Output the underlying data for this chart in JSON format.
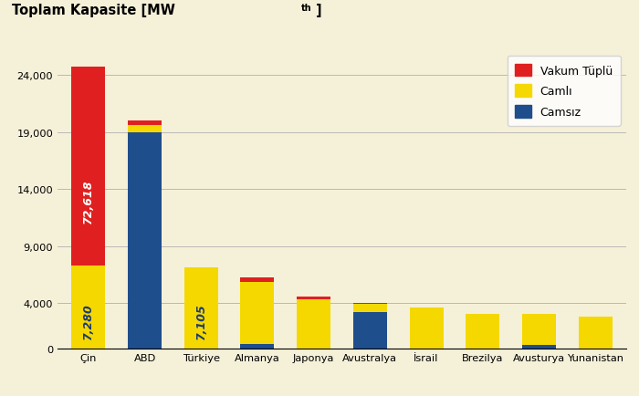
{
  "categories": [
    "Çin",
    "ABD",
    "Türkiye",
    "Almanya",
    "Japonya",
    "Avustralya",
    "İsrail",
    "Brezilya",
    "Avusturya",
    "Yunanistan"
  ],
  "vakum": [
    17500,
    350,
    0,
    420,
    200,
    100,
    0,
    0,
    0,
    0
  ],
  "camli": [
    7280,
    650,
    7105,
    5500,
    4350,
    700,
    3600,
    3000,
    2700,
    2800
  ],
  "camsiz": [
    0,
    19000,
    0,
    350,
    0,
    3200,
    0,
    0,
    300,
    0
  ],
  "color_vakum": "#e02020",
  "color_camli": "#f5d800",
  "color_camsiz": "#1f4e8c",
  "background_color": "#f5f0d8",
  "yticks": [
    0,
    4000,
    9000,
    14000,
    19000,
    24000
  ],
  "ytick_labels": [
    "0",
    "4,000",
    "9,000",
    "14,000",
    "19,000",
    "24,000"
  ],
  "ylim": [
    0,
    26500
  ],
  "bar_width": 0.6,
  "label_72618_text": "72,618",
  "label_7280_text": "7,280",
  "label_7105_text": "7,105",
  "legend_vakum": "Vakum Tüplü",
  "legend_camli": "Camlı",
  "legend_camsiz": "Camsız"
}
